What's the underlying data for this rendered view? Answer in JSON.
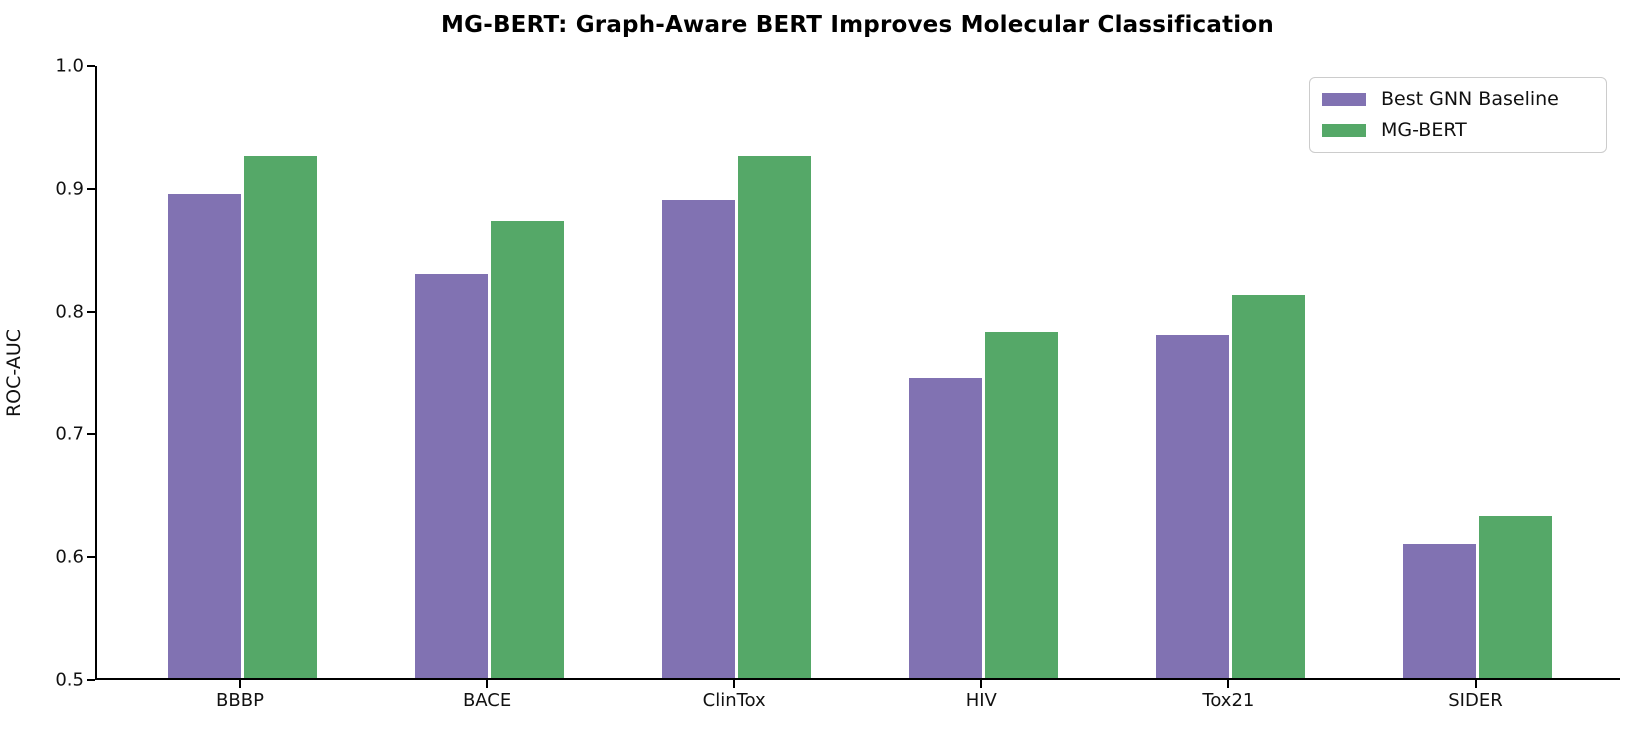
{
  "title": "MG-BERT: Graph-Aware BERT Improves Molecular Classification",
  "chart_data": {
    "type": "bar",
    "title": "MG-BERT: Graph-Aware BERT Improves Molecular Classification",
    "categories": [
      "BBBP",
      "BACE",
      "ClinTox",
      "HIV",
      "Tox21",
      "SIDER"
    ],
    "series": [
      {
        "name": "Best GNN Baseline",
        "color": "#8172b2",
        "values": [
          0.894,
          0.829,
          0.889,
          0.744,
          0.779,
          0.609
        ]
      },
      {
        "name": "MG-BERT",
        "color": "#55a868",
        "values": [
          0.925,
          0.872,
          0.925,
          0.782,
          0.812,
          0.632
        ]
      }
    ],
    "xlabel": "",
    "ylabel": "ROC-AUC",
    "ylim": [
      0.5,
      1.0
    ],
    "yticks": [
      0.5,
      0.6,
      0.7,
      0.8,
      0.9,
      1.0
    ],
    "grid": false,
    "legend_position": "upper right"
  }
}
